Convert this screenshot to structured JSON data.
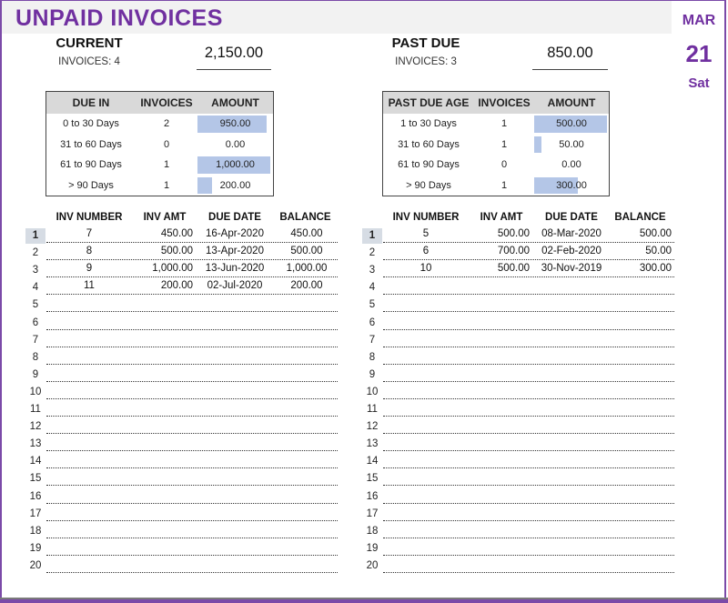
{
  "header": {
    "title": "UNPAID INVOICES",
    "date_month": "MAR",
    "date_day": "21",
    "date_dow": "Sat"
  },
  "colors": {
    "accent": "#7030a0",
    "bar": "#b4c6e7",
    "header_bg": "#d9d9d9",
    "title_bg": "#f2f2f2"
  },
  "current": {
    "label": "CURRENT",
    "invoices_text": "INVOICES: 4",
    "amount": "2,150.00",
    "aging": {
      "headers": [
        "DUE IN",
        "INVOICES",
        "AMOUNT"
      ],
      "rows": [
        {
          "range": "0 to 30 Days",
          "count": "2",
          "amount": "950.00",
          "value": 950
        },
        {
          "range": "31 to 60 Days",
          "count": "0",
          "amount": "0.00",
          "value": 0
        },
        {
          "range": "61 to 90 Days",
          "count": "1",
          "amount": "1,000.00",
          "value": 1000
        },
        {
          "range": "> 90 Days",
          "count": "1",
          "amount": "200.00",
          "value": 200
        }
      ]
    },
    "list": {
      "headers": [
        "INV NUMBER",
        "INV AMT",
        "DUE DATE",
        "BALANCE"
      ],
      "rows": [
        {
          "n": "1",
          "inv": "7",
          "amt": "450.00",
          "due": "16-Apr-2020",
          "bal": "450.00"
        },
        {
          "n": "2",
          "inv": "8",
          "amt": "500.00",
          "due": "13-Apr-2020",
          "bal": "500.00"
        },
        {
          "n": "3",
          "inv": "9",
          "amt": "1,000.00",
          "due": "13-Jun-2020",
          "bal": "1,000.00"
        },
        {
          "n": "4",
          "inv": "11",
          "amt": "200.00",
          "due": "02-Jul-2020",
          "bal": "200.00"
        },
        {
          "n": "5"
        },
        {
          "n": "6"
        },
        {
          "n": "7"
        },
        {
          "n": "8"
        },
        {
          "n": "9"
        },
        {
          "n": "10"
        },
        {
          "n": "11"
        },
        {
          "n": "12"
        },
        {
          "n": "13"
        },
        {
          "n": "14"
        },
        {
          "n": "15"
        },
        {
          "n": "16"
        },
        {
          "n": "17"
        },
        {
          "n": "18"
        },
        {
          "n": "19"
        },
        {
          "n": "20"
        }
      ]
    }
  },
  "past_due": {
    "label": "PAST DUE",
    "invoices_text": "INVOICES: 3",
    "amount": "850.00",
    "aging": {
      "headers": [
        "PAST DUE AGE",
        "INVOICES",
        "AMOUNT"
      ],
      "rows": [
        {
          "range": "1 to 30 Days",
          "count": "1",
          "amount": "500.00",
          "value": 500
        },
        {
          "range": "31 to 60 Days",
          "count": "1",
          "amount": "50.00",
          "value": 50
        },
        {
          "range": "61 to 90 Days",
          "count": "0",
          "amount": "0.00",
          "value": 0
        },
        {
          "range": "> 90 Days",
          "count": "1",
          "amount": "300.00",
          "value": 300
        }
      ]
    },
    "list": {
      "headers": [
        "INV NUMBER",
        "INV AMT",
        "DUE DATE",
        "BALANCE"
      ],
      "rows": [
        {
          "n": "1",
          "inv": "5",
          "amt": "500.00",
          "due": "08-Mar-2020",
          "bal": "500.00"
        },
        {
          "n": "2",
          "inv": "6",
          "amt": "700.00",
          "due": "02-Feb-2020",
          "bal": "50.00"
        },
        {
          "n": "3",
          "inv": "10",
          "amt": "500.00",
          "due": "30-Nov-2019",
          "bal": "300.00"
        },
        {
          "n": "4"
        },
        {
          "n": "5"
        },
        {
          "n": "6"
        },
        {
          "n": "7"
        },
        {
          "n": "8"
        },
        {
          "n": "9"
        },
        {
          "n": "10"
        },
        {
          "n": "11"
        },
        {
          "n": "12"
        },
        {
          "n": "13"
        },
        {
          "n": "14"
        },
        {
          "n": "15"
        },
        {
          "n": "16"
        },
        {
          "n": "17"
        },
        {
          "n": "18"
        },
        {
          "n": "19"
        },
        {
          "n": "20"
        }
      ]
    }
  }
}
